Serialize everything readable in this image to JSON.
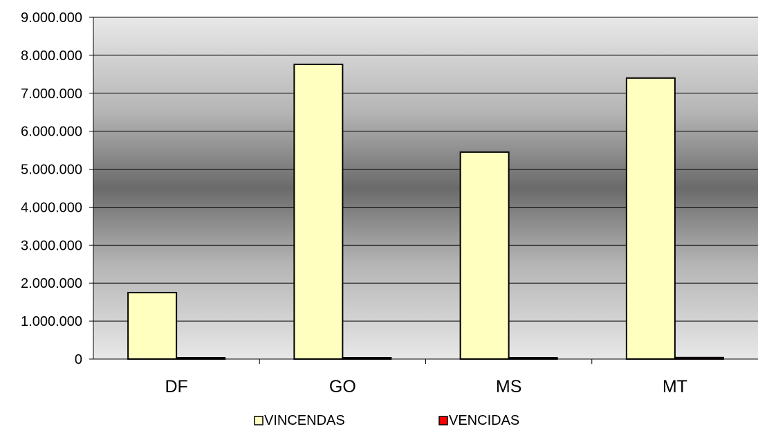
{
  "chart_data": {
    "type": "bar",
    "title": "",
    "xlabel": "",
    "ylabel": "",
    "categories": [
      "DF",
      "GO",
      "MS",
      "MT"
    ],
    "series": [
      {
        "name": "VINCENDAS",
        "values": [
          1750000,
          7760000,
          5450000,
          7400000
        ],
        "color": "#FFFFC0"
      },
      {
        "name": "VENCIDAS",
        "values": [
          20000,
          30000,
          30000,
          40000
        ],
        "color": "#FF0000"
      }
    ],
    "ylim": [
      0,
      9000000
    ],
    "yticks": [
      0,
      1000000,
      2000000,
      3000000,
      4000000,
      5000000,
      6000000,
      7000000,
      8000000,
      9000000
    ],
    "ytick_labels": [
      "0",
      "1.000.000",
      "2.000.000",
      "3.000.000",
      "4.000.000",
      "5.000.000",
      "6.000.000",
      "7.000.000",
      "8.000.000",
      "9.000.000"
    ],
    "grid": true,
    "legend_position": "bottom",
    "background": "vertical gray gradient (light at top and bottom, dark in the middle)"
  }
}
